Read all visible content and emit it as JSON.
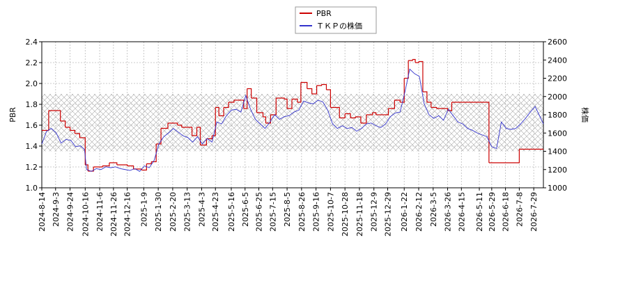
{
  "chart_data": {
    "type": "line",
    "ylabel": "PBR",
    "y2label": "株価",
    "xlim": [
      "2024-8-14",
      "2026-8-12"
    ],
    "xticks": [
      "2024-8-14",
      "2024-9-3",
      "2024-9-24",
      "2024-10-16",
      "2024-11-6",
      "2024-11-26",
      "2024-12-16",
      "2025-1-9",
      "2025-1-30",
      "2025-2-20",
      "2025-3-13",
      "2025-4-3",
      "2025-4-23",
      "2025-5-16",
      "2025-6-5",
      "2025-6-25",
      "2025-7-15",
      "2025-8-5",
      "2025-8-26",
      "2025-9-16",
      "2025-10-7",
      "2025-10-28",
      "2025-11-18",
      "2025-12-9",
      "2025-12-29",
      "2026-1-22",
      "2026-2-12",
      "2026-3-5",
      "2026-3-26",
      "2026-4-15",
      "2026-5-11",
      "2026-5-29",
      "2026-6-18",
      "2026-7-8",
      "2026-7-29"
    ],
    "ylim": [
      1.0,
      2.4
    ],
    "yticks": [
      {
        "value": 1.0,
        "label": "1.0"
      },
      1.2,
      1.4,
      1.6,
      1.8,
      {
        "value": 2.0,
        "label": "2.0"
      },
      2.2,
      2.4
    ],
    "y2lim": [
      1000,
      2600
    ],
    "y2ticks": [
      1000,
      1200,
      1400,
      1600,
      1800,
      2000,
      2200,
      2400,
      2600
    ],
    "grid": true,
    "shaded_range": [
      1.35,
      1.9
    ],
    "legend": "top",
    "series": [
      {
        "name": "PBR",
        "color": "#cc0000",
        "step": true,
        "x": [
          "2024-8-14",
          "2024-8-24",
          "2024-9-10",
          "2024-9-17",
          "2024-9-24",
          "2024-10-1",
          "2024-10-8",
          "2024-10-16",
          "2024-10-20",
          "2024-10-28",
          "2024-11-10",
          "2024-11-20",
          "2024-12-1",
          "2024-12-16",
          "2024-12-25",
          "2025-1-6",
          "2025-1-13",
          "2025-1-20",
          "2025-1-27",
          "2025-2-3",
          "2025-2-13",
          "2025-2-27",
          "2025-3-5",
          "2025-3-20",
          "2025-3-27",
          "2025-4-1",
          "2025-4-10",
          "2025-4-18",
          "2025-4-23",
          "2025-4-28",
          "2025-5-5",
          "2025-5-12",
          "2025-5-20",
          "2025-6-1",
          "2025-6-3",
          "2025-6-8",
          "2025-6-14",
          "2025-6-22",
          "2025-7-1",
          "2025-7-5",
          "2025-7-12",
          "2025-7-20",
          "2025-8-1",
          "2025-8-5",
          "2025-8-12",
          "2025-8-20",
          "2025-8-25",
          "2025-9-3",
          "2025-9-10",
          "2025-9-17",
          "2025-9-24",
          "2025-10-1",
          "2025-10-7",
          "2025-10-20",
          "2025-10-28",
          "2025-11-5",
          "2025-11-12",
          "2025-11-20",
          "2025-11-28",
          "2025-12-7",
          "2025-12-12",
          "2025-12-25",
          "2025-12-30",
          "2026-1-8",
          "2026-1-16",
          "2026-1-22",
          "2026-1-28",
          "2026-2-3",
          "2026-2-7",
          "2026-2-12",
          "2026-2-18",
          "2026-2-24",
          "2026-3-2",
          "2026-3-10",
          "2026-3-26",
          "2026-4-1",
          "2026-5-25",
          "2026-7-8"
        ],
        "values": [
          1.55,
          1.74,
          1.64,
          1.58,
          1.55,
          1.52,
          1.48,
          1.22,
          1.16,
          1.2,
          1.21,
          1.24,
          1.22,
          1.21,
          1.18,
          1.17,
          1.23,
          1.25,
          1.42,
          1.57,
          1.62,
          1.6,
          1.58,
          1.5,
          1.58,
          1.41,
          1.47,
          1.5,
          1.77,
          1.69,
          1.77,
          1.82,
          1.84,
          1.84,
          1.76,
          1.95,
          1.86,
          1.72,
          1.68,
          1.62,
          1.7,
          1.86,
          1.85,
          1.76,
          1.85,
          1.82,
          2.01,
          1.95,
          1.9,
          1.98,
          1.99,
          1.94,
          1.77,
          1.67,
          1.71,
          1.67,
          1.68,
          1.62,
          1.7,
          1.72,
          1.7,
          1.7,
          1.76,
          1.84,
          1.82,
          2.05,
          2.22,
          2.23,
          2.2,
          2.21,
          1.92,
          1.82,
          1.77,
          1.76,
          1.74,
          1.82,
          1.24,
          1.37
        ]
      },
      {
        "name": "ＴＫＰの株価",
        "color": "#3333cc",
        "axis": "y2",
        "x": [
          "2024-8-14",
          "2024-8-21",
          "2024-8-28",
          "2024-9-4",
          "2024-9-11",
          "2024-9-18",
          "2024-9-25",
          "2024-10-2",
          "2024-10-9",
          "2024-10-15",
          "2024-10-18",
          "2024-10-25",
          "2024-11-1",
          "2024-11-8",
          "2024-11-15",
          "2024-11-22",
          "2024-11-29",
          "2024-12-6",
          "2024-12-13",
          "2024-12-20",
          "2024-12-27",
          "2025-1-3",
          "2025-1-10",
          "2025-1-17",
          "2025-1-24",
          "2025-1-31",
          "2025-2-7",
          "2025-2-14",
          "2025-2-21",
          "2025-2-28",
          "2025-3-7",
          "2025-3-14",
          "2025-3-21",
          "2025-3-28",
          "2025-4-4",
          "2025-4-11",
          "2025-4-18",
          "2025-4-25",
          "2025-5-2",
          "2025-5-9",
          "2025-5-16",
          "2025-5-23",
          "2025-5-30",
          "2025-6-6",
          "2025-6-13",
          "2025-6-20",
          "2025-6-27",
          "2025-7-4",
          "2025-7-11",
          "2025-7-18",
          "2025-7-25",
          "2025-8-1",
          "2025-8-8",
          "2025-8-15",
          "2025-8-22",
          "2025-8-29",
          "2025-9-5",
          "2025-9-12",
          "2025-9-19",
          "2025-9-26",
          "2025-10-3",
          "2025-10-10",
          "2025-10-17",
          "2025-10-24",
          "2025-10-31",
          "2025-11-7",
          "2025-11-14",
          "2025-11-21",
          "2025-11-28",
          "2025-12-5",
          "2025-12-12",
          "2025-12-19",
          "2025-12-26",
          "2026-1-2",
          "2026-1-9",
          "2026-1-16",
          "2026-1-23",
          "2026-1-30",
          "2026-2-6",
          "2026-2-13",
          "2026-2-20",
          "2026-2-27",
          "2026-3-6",
          "2026-3-13",
          "2026-3-20",
          "2026-3-27",
          "2026-4-3",
          "2026-4-10",
          "2026-4-17",
          "2026-4-24",
          "2026-5-1",
          "2026-5-8",
          "2026-5-15",
          "2026-5-22",
          "2026-5-29",
          "2026-6-5",
          "2026-6-12",
          "2026-6-19",
          "2026-6-26",
          "2026-7-3",
          "2026-7-10",
          "2026-7-17",
          "2026-7-24",
          "2026-7-31",
          "2026-8-7",
          "2026-8-12"
        ],
        "values": [
          1480,
          1620,
          1650,
          1600,
          1490,
          1530,
          1520,
          1450,
          1460,
          1420,
          1200,
          1180,
          1210,
          1200,
          1230,
          1220,
          1230,
          1210,
          1200,
          1190,
          1210,
          1180,
          1240,
          1220,
          1300,
          1480,
          1560,
          1600,
          1650,
          1610,
          1570,
          1550,
          1500,
          1560,
          1480,
          1540,
          1500,
          1720,
          1700,
          1790,
          1850,
          1860,
          1830,
          2010,
          1860,
          1750,
          1700,
          1650,
          1720,
          1800,
          1750,
          1780,
          1790,
          1830,
          1850,
          1950,
          1930,
          1920,
          1960,
          1940,
          1850,
          1700,
          1650,
          1680,
          1650,
          1660,
          1620,
          1650,
          1700,
          1710,
          1680,
          1660,
          1700,
          1780,
          1820,
          1830,
          2050,
          2300,
          2250,
          2220,
          1920,
          1800,
          1760,
          1790,
          1740,
          1860,
          1790,
          1720,
          1700,
          1650,
          1630,
          1600,
          1580,
          1560,
          1450,
          1430,
          1720,
          1650,
          1640,
          1650,
          1700,
          1760,
          1830,
          1890,
          1780,
          1700
        ]
      }
    ]
  }
}
